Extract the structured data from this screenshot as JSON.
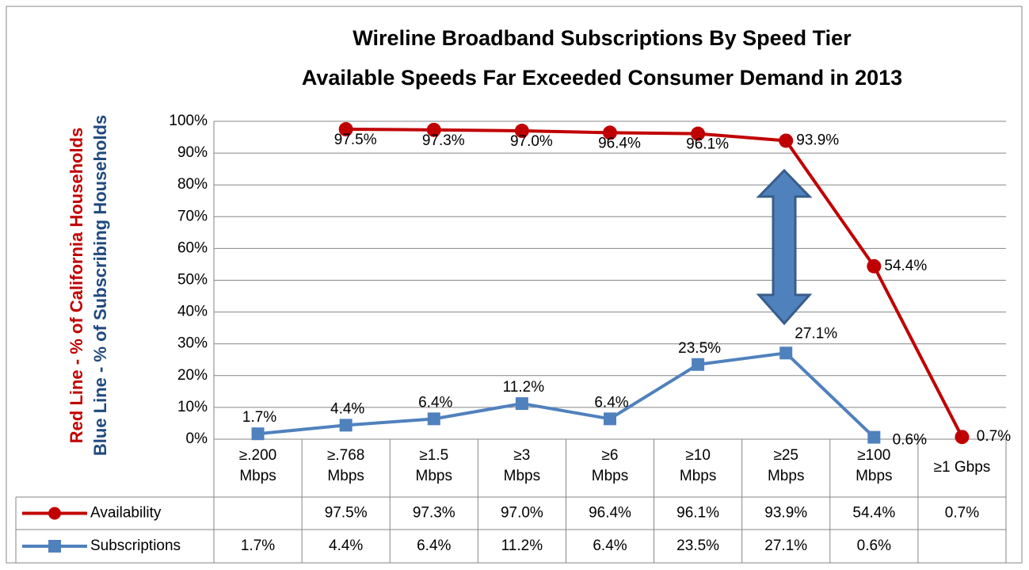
{
  "chart_data": {
    "type": "line",
    "title": "Wireline Broadband Subscriptions By Speed Tier",
    "subtitle": "Available Speeds Far Exceeded Consumer Demand in 2013",
    "y_labels": [
      "Red Line - % of California Households",
      "Blue Line - % of Subscribing Households"
    ],
    "y_label_colors": [
      "#c00000",
      "#1f497d"
    ],
    "categories": [
      [
        "≥.200",
        "Mbps"
      ],
      [
        "≥.768",
        "Mbps"
      ],
      [
        "≥1.5",
        "Mbps"
      ],
      [
        "≥3",
        "Mbps"
      ],
      [
        "≥6",
        "Mbps"
      ],
      [
        "≥10",
        "Mbps"
      ],
      [
        "≥25",
        "Mbps"
      ],
      [
        "≥100",
        "Mbps"
      ],
      [
        "≥1 Gbps"
      ]
    ],
    "series": [
      {
        "name": "Availability",
        "color": "#c00000",
        "marker": "circle",
        "values": [
          null,
          97.5,
          97.3,
          97.0,
          96.4,
          96.1,
          93.9,
          54.4,
          0.7
        ],
        "value_labels": [
          null,
          "97.5%",
          "97.3%",
          "97.0%",
          "96.4%",
          "96.1%",
          "93.9%",
          "54.4%",
          "0.7%"
        ]
      },
      {
        "name": "Subscriptions",
        "color": "#4f81bd",
        "marker": "square",
        "values": [
          1.7,
          4.4,
          6.4,
          11.2,
          6.4,
          23.5,
          27.1,
          0.6,
          null
        ],
        "value_labels": [
          "1.7%",
          "4.4%",
          "6.4%",
          "11.2%",
          "6.4%",
          "23.5%",
          "27.1%",
          "0.6%",
          null
        ]
      }
    ],
    "ylim": [
      0,
      100
    ],
    "yticks": [
      {
        "value": 0,
        "label": "0%"
      },
      {
        "value": 10,
        "label": "10%"
      },
      {
        "value": 20,
        "label": "20%"
      },
      {
        "value": 30,
        "label": "30%"
      },
      {
        "value": 40,
        "label": "40%"
      },
      {
        "value": 50,
        "label": "50%"
      },
      {
        "value": 60,
        "label": "60%"
      },
      {
        "value": 70,
        "label": "70%"
      },
      {
        "value": 80,
        "label": "80%"
      },
      {
        "value": 90,
        "label": "90%"
      },
      {
        "value": 100,
        "label": "100%"
      }
    ],
    "grid": true
  }
}
